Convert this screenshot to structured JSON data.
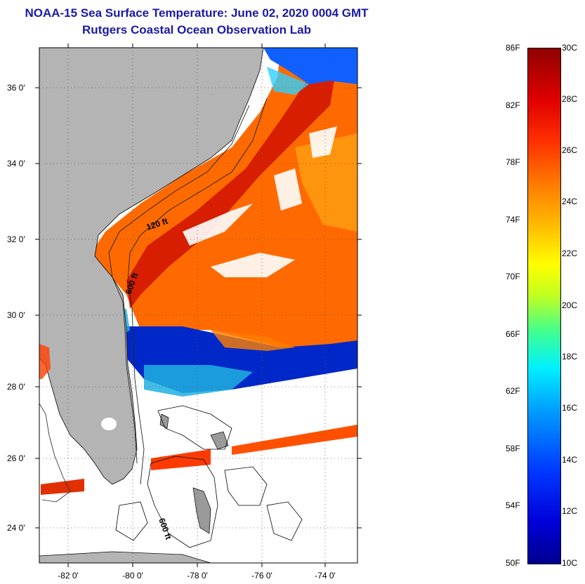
{
  "title_line1": "NOAA-15 Sea Surface Temperature:  June 02, 2020 0004 GMT",
  "title_line2": "Rutgers Coastal Ocean Observation Lab",
  "map": {
    "lat_labels": [
      "36 0'",
      "34 0'",
      "32 0'",
      "30 0'",
      "28 0'",
      "26 0'",
      "24 0'"
    ],
    "lon_labels": [
      "-82 0'",
      "-80 0'",
      "-78 0'",
      "-76 0'",
      "-74 0'"
    ],
    "contour_labels": [
      "120 ft",
      "600 ft",
      "600 ft"
    ],
    "colors": {
      "land": "#b4b4b4",
      "no_data": "#ffffff"
    }
  },
  "colorbar": {
    "fahrenheit_labels": [
      "86F",
      "82F",
      "78F",
      "74F",
      "70F",
      "66F",
      "62F",
      "58F",
      "54F",
      "50F"
    ],
    "celsius_labels": [
      "30C",
      "28C",
      "26C",
      "24C",
      "22C",
      "20C",
      "18C",
      "16C",
      "14C",
      "12C",
      "10C"
    ]
  }
}
